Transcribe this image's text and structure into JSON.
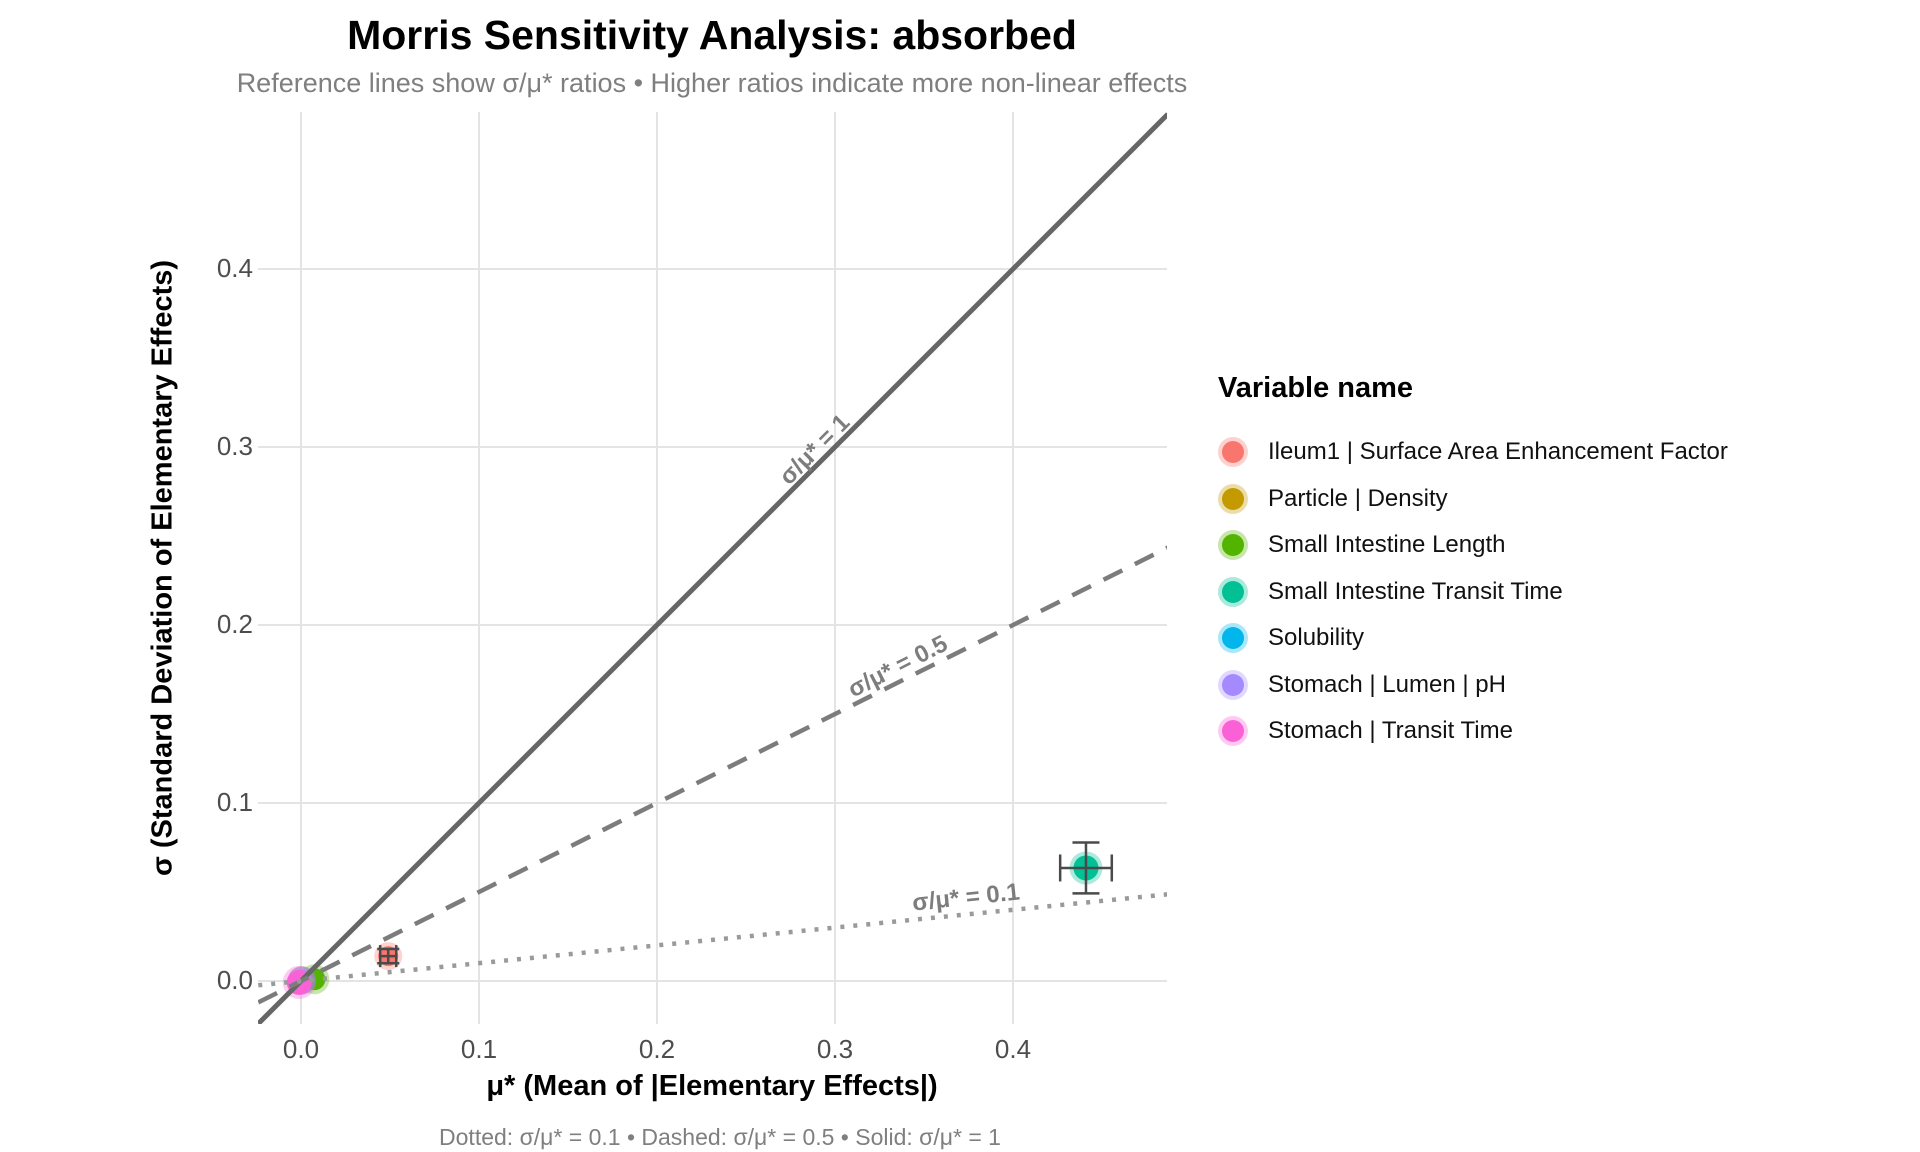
{
  "header": {
    "title": "Morris Sensitivity Analysis: absorbed",
    "subtitle": "Reference lines show σ/μ* ratios • Higher ratios indicate more non-linear effects"
  },
  "caption": "Dotted: σ/μ* = 0.1 • Dashed: σ/μ* = 0.5 • Solid: σ/μ* = 1",
  "axes": {
    "x": {
      "title": "μ* (Mean of |Elementary Effects|)",
      "ticks": [
        "0.0",
        "0.1",
        "0.2",
        "0.3",
        "0.4"
      ]
    },
    "y": {
      "title": "σ (Standard Deviation of Elementary Effects)",
      "ticks": [
        "0.0",
        "0.1",
        "0.2",
        "0.3",
        "0.4"
      ]
    }
  },
  "legend": {
    "title": "Variable name",
    "items": [
      {
        "label": "Ileum1 | Surface Area Enhancement Factor",
        "color": "#F8766D"
      },
      {
        "label": "Particle | Density",
        "color": "#C49A00"
      },
      {
        "label": "Small Intestine Length",
        "color": "#53B400"
      },
      {
        "label": "Small Intestine Transit Time",
        "color": "#00C094"
      },
      {
        "label": "Solubility",
        "color": "#00B6EB"
      },
      {
        "label": "Stomach | Lumen | pH",
        "color": "#A58AFF"
      },
      {
        "label": "Stomach | Transit Time",
        "color": "#FB61D7"
      }
    ]
  },
  "ref_lines": [
    {
      "label": "σ/μ* = 1",
      "ratio": 1,
      "style": "solid"
    },
    {
      "label": "σ/μ* = 0.5",
      "ratio": 0.5,
      "style": "dashed"
    },
    {
      "label": "σ/μ* = 0.1",
      "ratio": 0.1,
      "style": "dotted"
    }
  ],
  "chart_data": {
    "type": "scatter",
    "title": "Morris Sensitivity Analysis: absorbed",
    "xlabel": "μ* (Mean of |Elementary Effects|)",
    "ylabel": "σ (Standard Deviation of Elementary Effects)",
    "xlim": [
      -0.024,
      0.487
    ],
    "ylim": [
      -0.024,
      0.488
    ],
    "x_breaks": [
      0.0,
      0.1,
      0.2,
      0.3,
      0.4
    ],
    "y_breaks": [
      0.0,
      0.1,
      0.2,
      0.3,
      0.4
    ],
    "grid": true,
    "legend_position": "right",
    "reference_ratios": [
      0.1,
      0.5,
      1
    ],
    "points": [
      {
        "name": "Ileum1 | Surface Area Enhancement Factor",
        "color": "#F8766D",
        "mu_star": 0.049,
        "sigma": 0.014,
        "mu_err": 0.0045,
        "sigma_err": 0.004,
        "r": 10
      },
      {
        "name": "Particle | Density",
        "color": "#C49A00",
        "mu_star": 0.0005,
        "sigma": 0.0004,
        "mu_err": 0,
        "sigma_err": 0,
        "r": 10
      },
      {
        "name": "Small Intestine Length",
        "color": "#53B400",
        "mu_star": 0.0075,
        "sigma": 0.001,
        "mu_err": 0,
        "sigma_err": 0,
        "r": 11
      },
      {
        "name": "Small Intestine Transit Time",
        "color": "#00C094",
        "mu_star": 0.441,
        "sigma": 0.0635,
        "mu_err": 0.0145,
        "sigma_err": 0.0143,
        "r": 12.5
      },
      {
        "name": "Solubility",
        "color": "#00B6EB",
        "mu_star": 0.0004,
        "sigma": 0.0002,
        "mu_err": 0,
        "sigma_err": 0,
        "r": 10
      },
      {
        "name": "Stomach | Lumen | pH",
        "color": "#A58AFF",
        "mu_star": 0.0006,
        "sigma": 0.0005,
        "mu_err": 0,
        "sigma_err": 0,
        "r": 10
      },
      {
        "name": "Stomach | Transit Time",
        "color": "#FB61D7",
        "mu_star": -0.001,
        "sigma": -0.0008,
        "mu_err": 0,
        "sigma_err": 0,
        "r": 12.5
      }
    ]
  },
  "style": {
    "grid_color": "#E4E4E4",
    "solid_line_color": "#666666",
    "dashed_line_color": "#7C7C7C",
    "dotted_line_color": "#9A9A9A",
    "error_bar_color": "#4A4A4A"
  }
}
